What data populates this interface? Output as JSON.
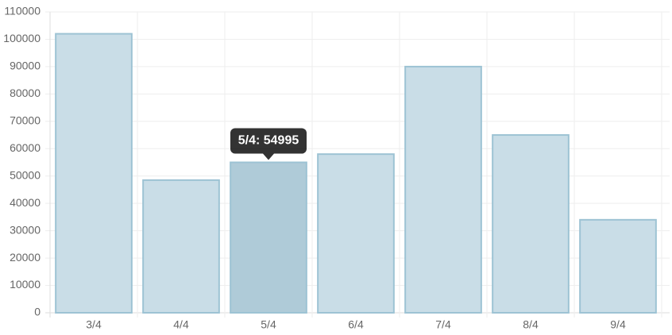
{
  "chart_data": {
    "type": "bar",
    "categories": [
      "3/4",
      "4/4",
      "5/4",
      "6/4",
      "7/4",
      "8/4",
      "9/4"
    ],
    "values": [
      102000,
      48500,
      54995,
      58000,
      90000,
      65000,
      34000
    ],
    "color": "#c9dde7",
    "border_color": "#9dc3d4",
    "highlight_color": "#afcbd8",
    "ylim": [
      0,
      110000
    ],
    "yticks": [
      0,
      10000,
      20000,
      30000,
      40000,
      50000,
      60000,
      70000,
      80000,
      90000,
      100000,
      110000
    ],
    "grid": true,
    "tooltip": {
      "category": "5/4",
      "text": "5/4: 54995"
    }
  }
}
